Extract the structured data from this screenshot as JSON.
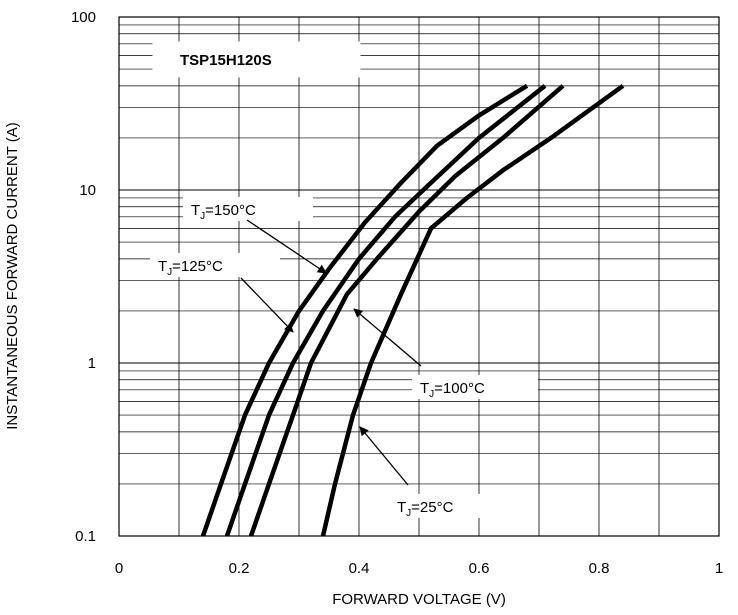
{
  "chart_data": {
    "type": "line",
    "title": "TSP15H120S",
    "xlabel": "FORWARD VOLTAGE (V)",
    "ylabel": "INSTANTANEOUS FORWARD CURRENT (A)",
    "xlim": [
      0,
      1
    ],
    "ylim": [
      0.1,
      100
    ],
    "y_scale": "log",
    "grid": true,
    "x_ticks": [
      "0",
      "0.2",
      "0.4",
      "0.6",
      "0.8",
      "1"
    ],
    "y_ticks": [
      "0.1",
      "1",
      "10",
      "100"
    ],
    "series": [
      {
        "name": "TJ=150°C",
        "label_main": "T",
        "label_sub": "J",
        "label_rest": "=150°C",
        "x": [
          0.14,
          0.17,
          0.21,
          0.25,
          0.3,
          0.35,
          0.41,
          0.47,
          0.53,
          0.6,
          0.68
        ],
        "y": [
          0.1,
          0.2,
          0.5,
          1,
          2,
          3.5,
          6.5,
          11,
          18,
          27,
          40
        ]
      },
      {
        "name": "TJ=125°C",
        "label_main": "T",
        "label_sub": "J",
        "label_rest": "=125°C",
        "x": [
          0.18,
          0.21,
          0.25,
          0.29,
          0.34,
          0.4,
          0.46,
          0.52,
          0.6,
          0.71
        ],
        "y": [
          0.1,
          0.2,
          0.5,
          1,
          2,
          4,
          7,
          11,
          20,
          40
        ]
      },
      {
        "name": "TJ=100°C",
        "label_main": "T",
        "label_sub": "J",
        "label_rest": "=100°C",
        "x": [
          0.22,
          0.25,
          0.29,
          0.32,
          0.38,
          0.43,
          0.5,
          0.56,
          0.64,
          0.74
        ],
        "y": [
          0.1,
          0.2,
          0.5,
          1,
          2.5,
          4,
          7.5,
          12,
          20,
          40
        ]
      },
      {
        "name": "TJ=25°C",
        "label_main": "T",
        "label_sub": "J",
        "label_rest": "=25°C",
        "x": [
          0.34,
          0.36,
          0.39,
          0.42,
          0.47,
          0.52,
          0.58,
          0.64,
          0.72,
          0.84
        ],
        "y": [
          0.1,
          0.2,
          0.5,
          1,
          2.5,
          6,
          9,
          13,
          20,
          40
        ]
      }
    ]
  }
}
